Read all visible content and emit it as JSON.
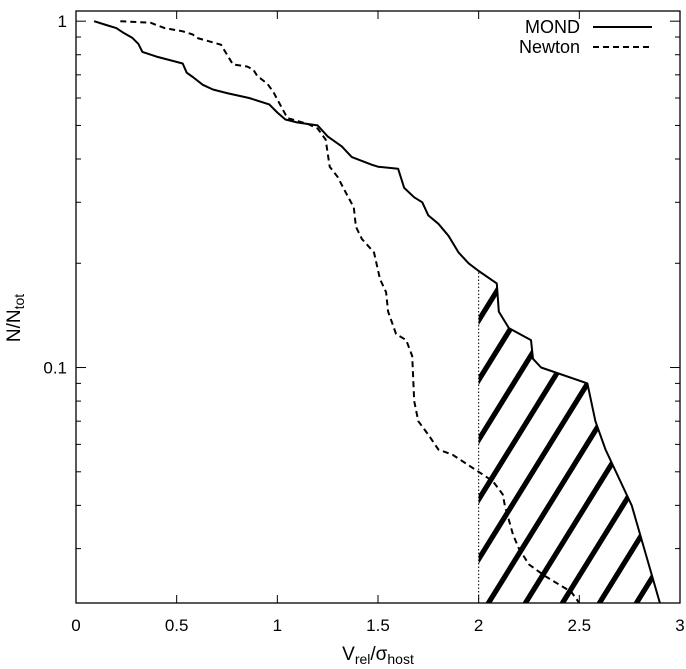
{
  "chart_data": {
    "type": "line",
    "title": "",
    "xlabel": {
      "main": "V",
      "sub1": "rel",
      "sep": "/σ",
      "sub2": "host"
    },
    "ylabel": {
      "main": "N/N",
      "sub": "tot"
    },
    "xlim": [
      0,
      3
    ],
    "ylim": [
      0.0209,
      1.07
    ],
    "yscale": "log",
    "grid": false,
    "legend_position": "top-right",
    "x_ticks": [
      {
        "value": 0,
        "label": "0"
      },
      {
        "value": 0.5,
        "label": "0.5"
      },
      {
        "value": 1,
        "label": "1"
      },
      {
        "value": 1.5,
        "label": "1.5"
      },
      {
        "value": 2,
        "label": "2"
      },
      {
        "value": 2.5,
        "label": "2.5"
      },
      {
        "value": 3,
        "label": "3"
      }
    ],
    "y_ticks": [
      {
        "value": 1,
        "label": "1"
      },
      {
        "value": 0.1,
        "label": "0.1"
      }
    ],
    "series": [
      {
        "name": "MOND",
        "style": "solid",
        "color": "#000000",
        "points": [
          [
            0.09,
            1.0
          ],
          [
            0.15,
            0.975
          ],
          [
            0.2,
            0.955
          ],
          [
            0.23,
            0.93
          ],
          [
            0.28,
            0.895
          ],
          [
            0.31,
            0.86
          ],
          [
            0.33,
            0.815
          ],
          [
            0.4,
            0.79
          ],
          [
            0.53,
            0.755
          ],
          [
            0.55,
            0.71
          ],
          [
            0.58,
            0.69
          ],
          [
            0.63,
            0.655
          ],
          [
            0.68,
            0.635
          ],
          [
            0.75,
            0.62
          ],
          [
            0.86,
            0.6
          ],
          [
            0.96,
            0.575
          ],
          [
            1.0,
            0.545
          ],
          [
            1.04,
            0.52
          ],
          [
            1.1,
            0.51
          ],
          [
            1.2,
            0.5
          ],
          [
            1.25,
            0.465
          ],
          [
            1.32,
            0.435
          ],
          [
            1.37,
            0.405
          ],
          [
            1.42,
            0.395
          ],
          [
            1.47,
            0.385
          ],
          [
            1.5,
            0.38
          ],
          [
            1.6,
            0.375
          ],
          [
            1.63,
            0.33
          ],
          [
            1.68,
            0.31
          ],
          [
            1.72,
            0.3
          ],
          [
            1.75,
            0.275
          ],
          [
            1.8,
            0.26
          ],
          [
            1.85,
            0.24
          ],
          [
            1.9,
            0.215
          ],
          [
            1.95,
            0.2
          ],
          [
            2.0,
            0.19
          ],
          [
            2.09,
            0.175
          ],
          [
            2.1,
            0.145
          ],
          [
            2.15,
            0.13
          ],
          [
            2.26,
            0.12
          ],
          [
            2.27,
            0.106
          ],
          [
            2.31,
            0.1
          ],
          [
            2.54,
            0.09
          ],
          [
            2.58,
            0.07
          ],
          [
            2.63,
            0.058
          ],
          [
            2.76,
            0.04
          ],
          [
            2.9,
            0.0209
          ]
        ]
      },
      {
        "name": "Newton",
        "style": "dashed",
        "color": "#000000",
        "points": [
          [
            0.22,
            1.0
          ],
          [
            0.37,
            0.99
          ],
          [
            0.44,
            0.955
          ],
          [
            0.53,
            0.935
          ],
          [
            0.58,
            0.915
          ],
          [
            0.6,
            0.895
          ],
          [
            0.72,
            0.855
          ],
          [
            0.75,
            0.8
          ],
          [
            0.78,
            0.75
          ],
          [
            0.85,
            0.74
          ],
          [
            0.88,
            0.725
          ],
          [
            0.9,
            0.695
          ],
          [
            0.95,
            0.66
          ],
          [
            0.98,
            0.625
          ],
          [
            1.01,
            0.58
          ],
          [
            1.05,
            0.525
          ],
          [
            1.15,
            0.505
          ],
          [
            1.2,
            0.49
          ],
          [
            1.24,
            0.455
          ],
          [
            1.25,
            0.415
          ],
          [
            1.26,
            0.38
          ],
          [
            1.3,
            0.355
          ],
          [
            1.34,
            0.32
          ],
          [
            1.38,
            0.29
          ],
          [
            1.39,
            0.255
          ],
          [
            1.42,
            0.235
          ],
          [
            1.48,
            0.215
          ],
          [
            1.51,
            0.18
          ],
          [
            1.54,
            0.165
          ],
          [
            1.55,
            0.145
          ],
          [
            1.59,
            0.125
          ],
          [
            1.64,
            0.12
          ],
          [
            1.67,
            0.108
          ],
          [
            1.68,
            0.08
          ],
          [
            1.7,
            0.07
          ],
          [
            1.75,
            0.064
          ],
          [
            1.8,
            0.058
          ],
          [
            1.87,
            0.056
          ],
          [
            2.07,
            0.047
          ],
          [
            2.12,
            0.043
          ],
          [
            2.13,
            0.04
          ],
          [
            2.17,
            0.033
          ],
          [
            2.2,
            0.03
          ],
          [
            2.25,
            0.027
          ],
          [
            2.33,
            0.025
          ],
          [
            2.46,
            0.0225
          ],
          [
            2.5,
            0.0209
          ]
        ]
      }
    ],
    "annotations": [
      {
        "type": "vertical-line",
        "x": 2,
        "style": "dotted",
        "description": "threshold marker"
      },
      {
        "type": "hatched-region",
        "x_from": 2,
        "bounded_by": "MOND",
        "description": "area under MOND curve for V_rel/σ_host > 2"
      }
    ]
  }
}
